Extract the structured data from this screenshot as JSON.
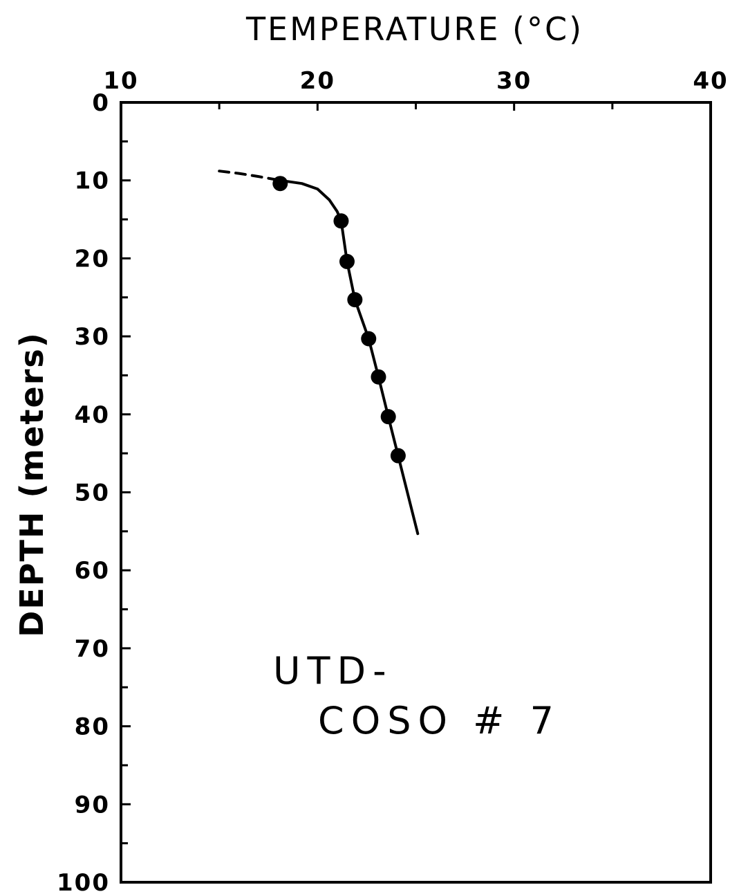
{
  "chart_data": {
    "type": "line",
    "title": "",
    "xlabel": "TEMPERATURE (°C)",
    "ylabel": "DEPTH (meters)",
    "x_axis_position": "top",
    "y_axis_inverted": true,
    "xlim": [
      10,
      40
    ],
    "ylim": [
      0,
      100
    ],
    "x_ticks": [
      10,
      20,
      30,
      40
    ],
    "x_tick_labels": [
      "10",
      "20",
      "30",
      "40"
    ],
    "y_ticks": [
      0,
      10,
      20,
      30,
      40,
      50,
      60,
      70,
      80,
      90,
      100
    ],
    "y_tick_labels": [
      "0",
      "10",
      "20",
      "30",
      "40",
      "50",
      "60",
      "70",
      "80",
      "90",
      "100"
    ],
    "grid": false,
    "legend": "none",
    "annotation_lines": [
      "UTD-",
      "COSO # 7"
    ],
    "series": [
      {
        "style": "points",
        "x": [
          18.1,
          21.2,
          21.5,
          21.9,
          22.6,
          23.1,
          23.6,
          24.1
        ],
        "y": [
          10.4,
          15.2,
          20.4,
          25.3,
          30.3,
          35.2,
          40.3,
          45.3
        ]
      },
      {
        "style": "solid",
        "x": [
          18.1,
          19.2,
          20.0,
          20.6,
          21.0,
          21.2,
          21.5,
          21.9,
          22.6,
          23.1,
          23.6,
          24.1,
          25.1
        ],
        "y": [
          10.0,
          10.4,
          11.1,
          12.5,
          14.0,
          15.2,
          20.4,
          25.3,
          30.3,
          35.2,
          40.3,
          45.3,
          55.3
        ]
      },
      {
        "style": "dashed",
        "x": [
          15.0,
          16.0,
          17.0,
          18.1
        ],
        "y": [
          8.8,
          9.1,
          9.5,
          10.0
        ]
      }
    ]
  }
}
